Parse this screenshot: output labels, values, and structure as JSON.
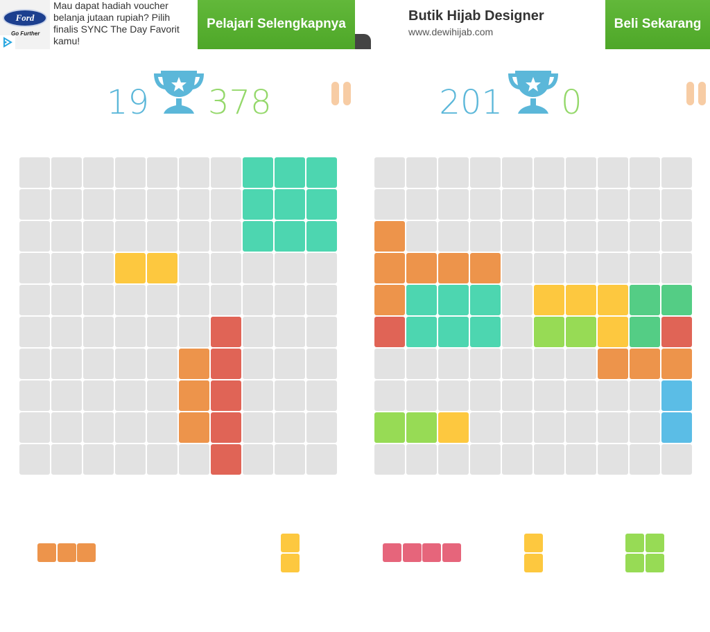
{
  "ads": [
    {
      "logo_text": "Ford",
      "logo_tagline": "Go Further",
      "text_lines": [
        "Mau dapat hadiah voucher",
        "belanja jutaan rupiah? Pilih",
        "finalis SYNC The Day Favorit",
        "kamu!"
      ],
      "button": "Pelajari Selengkapnya"
    },
    {
      "title": "Butik Hijab Designer",
      "url": "www.dewihijab.com",
      "button": "Beli Sekarang"
    }
  ],
  "colors": {
    "empty": "#e2e2e2",
    "teal": "#4dd6b0",
    "yellow": "#fdc83f",
    "orange": "#ed944b",
    "red": "#e06456",
    "green": "#54cd85",
    "lime": "#97db55",
    "blue": "#5bbde6",
    "pink": "#e6657b",
    "best_score": "#5bb7d9",
    "current_score": "#94d86a",
    "pause": "#f7cca4",
    "ad_button": "#56ad2e"
  },
  "games": [
    {
      "best": "19",
      "current": "378",
      "icons": [
        "trophy-icon",
        "pause-icon"
      ],
      "board": [
        [
          "E",
          "E",
          "E",
          "E",
          "E",
          "E",
          "E",
          "T",
          "T",
          "T"
        ],
        [
          "E",
          "E",
          "E",
          "E",
          "E",
          "E",
          "E",
          "T",
          "T",
          "T"
        ],
        [
          "E",
          "E",
          "E",
          "E",
          "E",
          "E",
          "E",
          "T",
          "T",
          "T"
        ],
        [
          "E",
          "E",
          "E",
          "Y",
          "Y",
          "E",
          "E",
          "E",
          "E",
          "E"
        ],
        [
          "E",
          "E",
          "E",
          "E",
          "E",
          "E",
          "E",
          "E",
          "E",
          "E"
        ],
        [
          "E",
          "E",
          "E",
          "E",
          "E",
          "E",
          "R",
          "E",
          "E",
          "E"
        ],
        [
          "E",
          "E",
          "E",
          "E",
          "E",
          "O",
          "R",
          "E",
          "E",
          "E"
        ],
        [
          "E",
          "E",
          "E",
          "E",
          "E",
          "O",
          "R",
          "E",
          "E",
          "E"
        ],
        [
          "E",
          "E",
          "E",
          "E",
          "E",
          "O",
          "R",
          "E",
          "E",
          "E"
        ],
        [
          "E",
          "E",
          "E",
          "E",
          "E",
          "E",
          "R",
          "E",
          "E",
          "E"
        ]
      ],
      "tray": [
        {
          "color": "O",
          "shape": [
            [
              1,
              1,
              1
            ]
          ]
        },
        {
          "color": "Y",
          "shape": [
            [
              1
            ],
            [
              1
            ]
          ]
        }
      ]
    },
    {
      "best": "201",
      "current": "0",
      "icons": [
        "trophy-icon",
        "pause-icon"
      ],
      "board": [
        [
          "E",
          "E",
          "E",
          "E",
          "E",
          "E",
          "E",
          "E",
          "E",
          "E"
        ],
        [
          "E",
          "E",
          "E",
          "E",
          "E",
          "E",
          "E",
          "E",
          "E",
          "E"
        ],
        [
          "O",
          "E",
          "E",
          "E",
          "E",
          "E",
          "E",
          "E",
          "E",
          "E"
        ],
        [
          "O",
          "O",
          "O",
          "O",
          "E",
          "E",
          "E",
          "E",
          "E",
          "E"
        ],
        [
          "O",
          "T",
          "T",
          "T",
          "E",
          "Y",
          "Y",
          "Y",
          "G",
          "G"
        ],
        [
          "R",
          "T",
          "T",
          "T",
          "E",
          "L",
          "L",
          "Y",
          "G",
          "R"
        ],
        [
          "E",
          "E",
          "E",
          "E",
          "E",
          "E",
          "E",
          "O",
          "O",
          "O"
        ],
        [
          "E",
          "E",
          "E",
          "E",
          "E",
          "E",
          "E",
          "E",
          "E",
          "B"
        ],
        [
          "L",
          "L",
          "Y",
          "E",
          "E",
          "E",
          "E",
          "E",
          "E",
          "B"
        ],
        [
          "E",
          "E",
          "E",
          "E",
          "E",
          "E",
          "E",
          "E",
          "E",
          "E"
        ]
      ],
      "tray": [
        {
          "color": "P",
          "shape": [
            [
              1,
              1,
              1,
              1
            ]
          ]
        },
        {
          "color": "Y",
          "shape": [
            [
              1
            ],
            [
              1
            ]
          ]
        },
        {
          "color": "L",
          "shape": [
            [
              1,
              1
            ],
            [
              1,
              1
            ]
          ]
        }
      ]
    }
  ]
}
